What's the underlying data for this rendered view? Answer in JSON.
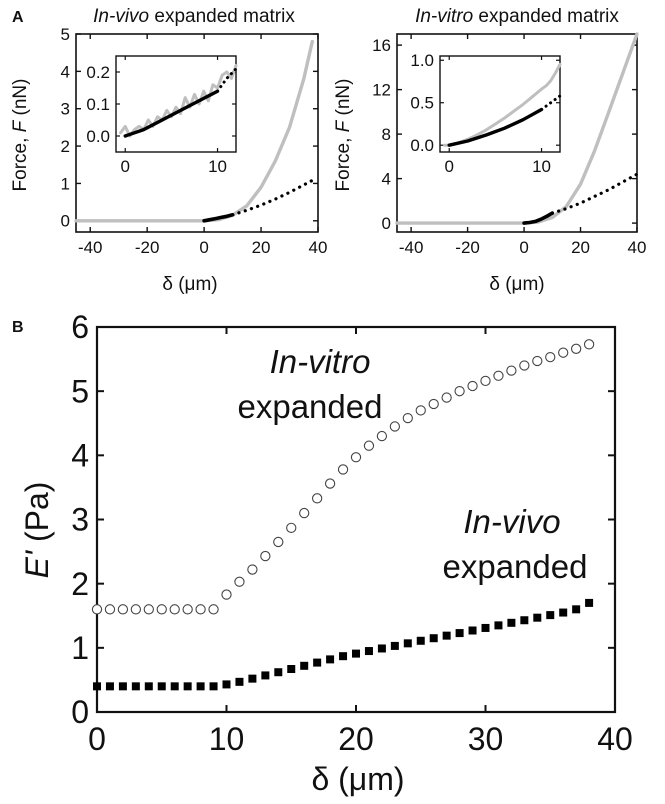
{
  "panel_labels": {
    "a": "A",
    "b": "B"
  },
  "colors": {
    "axis": "#111111",
    "model": "#000000",
    "measured": "#bfbfbf",
    "invivo_marker": "#000000",
    "invitro_marker": "#444444"
  },
  "chart_data": [
    {
      "id": "panel-a-left",
      "type": "line",
      "title_italic": "In-vivo",
      "title_rest": " expanded matrix",
      "xlabel": "δ (μm)",
      "ylabel_prefix": "Force, ",
      "ylabel_symbol": "F",
      "ylabel_suffix": " (nN)",
      "xlim": [
        -45,
        40
      ],
      "ylim": [
        -0.3,
        5
      ],
      "xticks": [
        -40,
        -20,
        0,
        20,
        40
      ],
      "yticks": [
        0,
        1,
        2,
        3,
        4,
        5
      ],
      "series": [
        {
          "role": "measured",
          "style": "gray-line",
          "x": [
            -45,
            -30,
            -15,
            0,
            5,
            10,
            15,
            20,
            25,
            30,
            35,
            38
          ],
          "y": [
            0,
            0,
            0,
            0,
            0.03,
            0.15,
            0.4,
            0.9,
            1.6,
            2.5,
            3.8,
            4.8
          ]
        },
        {
          "role": "fit",
          "style": "solid-black",
          "x": [
            0,
            2,
            4,
            6,
            8,
            10
          ],
          "y": [
            0,
            0.03,
            0.06,
            0.09,
            0.12,
            0.16
          ]
        },
        {
          "role": "extrapolation",
          "style": "dotted-black",
          "x": [
            10,
            15,
            20,
            25,
            30,
            35,
            38
          ],
          "y": [
            0.16,
            0.28,
            0.42,
            0.58,
            0.76,
            0.96,
            1.08
          ]
        }
      ],
      "inset": {
        "xlim": [
          -1,
          12
        ],
        "ylim": [
          -0.05,
          0.25
        ],
        "xticks": [
          0,
          10
        ],
        "yticks": [
          0.0,
          0.1,
          0.2
        ],
        "ytick_labels": [
          "0.0",
          "0.1",
          "0.2"
        ],
        "series": [
          {
            "role": "measured",
            "style": "gray-line",
            "x": [
              -0.5,
              0,
              0.5,
              1,
              1.5,
              2,
              2.5,
              3,
              3.5,
              4,
              4.5,
              5,
              5.5,
              6,
              6.5,
              7,
              7.5,
              8,
              8.5,
              9,
              9.5,
              10,
              10.5,
              11,
              11.5,
              12
            ],
            "y": [
              0.01,
              0.03,
              0.0,
              0.02,
              0.03,
              0.02,
              0.05,
              0.03,
              0.06,
              0.05,
              0.08,
              0.06,
              0.09,
              0.07,
              0.12,
              0.09,
              0.13,
              0.1,
              0.14,
              0.11,
              0.16,
              0.15,
              0.19,
              0.2,
              0.18,
              0.22
            ]
          },
          {
            "role": "fit",
            "style": "solid-black",
            "x": [
              0,
              2,
              4,
              6,
              8,
              10
            ],
            "y": [
              0,
              0.02,
              0.05,
              0.08,
              0.11,
              0.14
            ]
          },
          {
            "role": "extrapolation",
            "style": "dotted-black",
            "x": [
              10,
              11,
              12
            ],
            "y": [
              0.14,
              0.18,
              0.21
            ]
          }
        ]
      }
    },
    {
      "id": "panel-a-right",
      "type": "line",
      "title_italic": "In-vitro",
      "title_rest": " expanded matrix",
      "xlabel": "δ (μm)",
      "ylabel_prefix": "Force, ",
      "ylabel_symbol": "F",
      "ylabel_suffix": " (nN)",
      "xlim": [
        -45,
        40
      ],
      "ylim": [
        -0.8,
        17
      ],
      "xticks": [
        -40,
        -20,
        0,
        20,
        40
      ],
      "yticks": [
        0,
        4,
        8,
        12,
        16
      ],
      "series": [
        {
          "role": "measured",
          "style": "gray-line",
          "x": [
            -45,
            -30,
            -15,
            0,
            5,
            10,
            15,
            20,
            25,
            30,
            35,
            40
          ],
          "y": [
            0,
            0,
            0,
            0,
            0.1,
            0.5,
            1.5,
            3.5,
            6.5,
            10,
            13.5,
            17
          ]
        },
        {
          "role": "fit",
          "style": "solid-black",
          "x": [
            0,
            2,
            4,
            6,
            8,
            10
          ],
          "y": [
            0,
            0.05,
            0.15,
            0.35,
            0.6,
            0.9
          ]
        },
        {
          "role": "extrapolation",
          "style": "dotted-black",
          "x": [
            10,
            15,
            20,
            25,
            30,
            35,
            40
          ],
          "y": [
            0.9,
            1.3,
            1.8,
            2.4,
            3.0,
            3.7,
            4.4
          ]
        }
      ],
      "inset": {
        "xlim": [
          -1,
          12
        ],
        "ylim": [
          -0.08,
          1.05
        ],
        "xticks": [
          0,
          10
        ],
        "yticks": [
          0.0,
          0.5,
          1.0
        ],
        "ytick_labels": [
          "0.0",
          "0.5",
          "1.0"
        ],
        "series": [
          {
            "role": "measured",
            "style": "gray-line",
            "x": [
              -0.5,
              0,
              1,
              2,
              3,
              4,
              5,
              6,
              7,
              8,
              9,
              10,
              10.5,
              11,
              11.5,
              12
            ],
            "y": [
              0.0,
              0.0,
              0.03,
              0.07,
              0.12,
              0.18,
              0.25,
              0.32,
              0.4,
              0.48,
              0.57,
              0.66,
              0.7,
              0.76,
              0.85,
              0.95
            ]
          },
          {
            "role": "fit",
            "style": "solid-black",
            "x": [
              0,
              2,
              4,
              6,
              8,
              10
            ],
            "y": [
              0,
              0.05,
              0.12,
              0.2,
              0.3,
              0.42
            ]
          },
          {
            "role": "extrapolation",
            "style": "dotted-black",
            "x": [
              10,
              11,
              12
            ],
            "y": [
              0.42,
              0.5,
              0.58
            ]
          }
        ]
      }
    },
    {
      "id": "panel-b",
      "type": "scatter",
      "ylabel_symbol": "E'",
      "ylabel_suffix": " (Pa)",
      "xlabel": "δ (μm)",
      "xlim": [
        0,
        40
      ],
      "ylim": [
        0,
        6
      ],
      "xticks": [
        0,
        10,
        20,
        30,
        40
      ],
      "yticks": [
        0,
        1,
        2,
        3,
        4,
        5,
        6
      ],
      "grid": false,
      "series": [
        {
          "name_italic": "In-vitro",
          "name_rest": "expanded",
          "marker": "open-circle",
          "x": [
            0,
            1,
            2,
            3,
            4,
            5,
            6,
            7,
            8,
            9,
            10,
            11,
            12,
            13,
            14,
            15,
            16,
            17,
            18,
            19,
            20,
            21,
            22,
            23,
            24,
            25,
            26,
            27,
            28,
            29,
            30,
            31,
            32,
            33,
            34,
            35,
            36,
            37,
            38
          ],
          "y": [
            1.6,
            1.6,
            1.6,
            1.6,
            1.6,
            1.6,
            1.6,
            1.6,
            1.6,
            1.6,
            1.83,
            2.03,
            2.22,
            2.43,
            2.65,
            2.87,
            3.1,
            3.33,
            3.56,
            3.78,
            3.97,
            4.15,
            4.3,
            4.45,
            4.58,
            4.7,
            4.8,
            4.9,
            5.0,
            5.08,
            5.16,
            5.24,
            5.32,
            5.4,
            5.47,
            5.53,
            5.6,
            5.66,
            5.73
          ]
        },
        {
          "name_italic": "In-vivo",
          "name_rest": "expanded",
          "marker": "filled-square",
          "x": [
            0,
            1,
            2,
            3,
            4,
            5,
            6,
            7,
            8,
            9,
            10,
            11,
            12,
            13,
            14,
            15,
            16,
            17,
            18,
            19,
            20,
            21,
            22,
            23,
            24,
            25,
            26,
            27,
            28,
            29,
            30,
            31,
            32,
            33,
            34,
            35,
            36,
            37,
            38
          ],
          "y": [
            0.4,
            0.4,
            0.4,
            0.4,
            0.4,
            0.4,
            0.4,
            0.4,
            0.4,
            0.4,
            0.43,
            0.47,
            0.52,
            0.57,
            0.62,
            0.67,
            0.72,
            0.77,
            0.82,
            0.87,
            0.91,
            0.95,
            0.99,
            1.03,
            1.07,
            1.11,
            1.15,
            1.19,
            1.23,
            1.27,
            1.31,
            1.35,
            1.39,
            1.43,
            1.47,
            1.51,
            1.55,
            1.6,
            1.7
          ]
        }
      ]
    }
  ]
}
